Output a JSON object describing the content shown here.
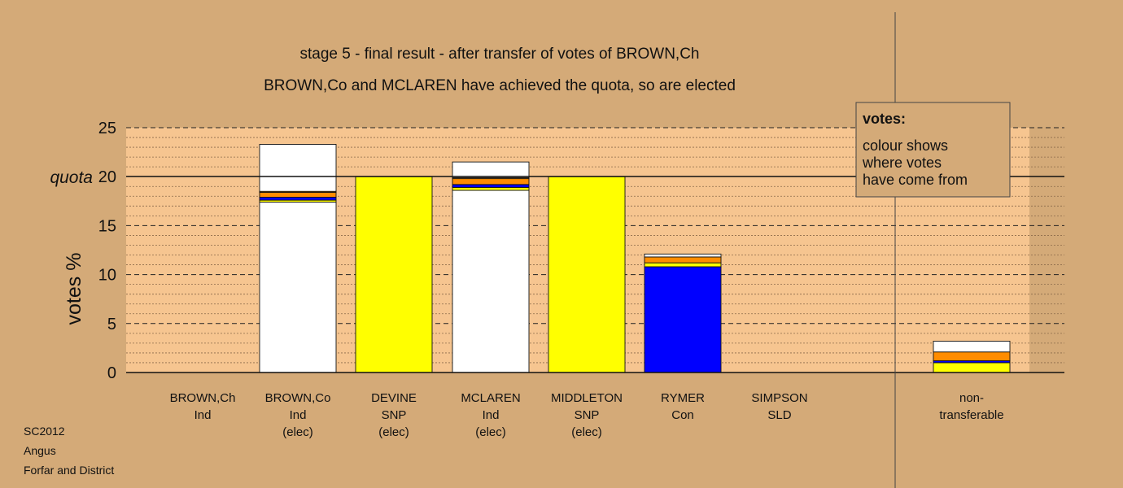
{
  "chart_data": {
    "type": "bar",
    "stacked": true,
    "title": "stage 5 - final result - after transfer of votes of BROWN,Ch",
    "subtitle": "BROWN,Co and MCLAREN have achieved the quota, so are elected",
    "ylabel": "votes %",
    "ylim": [
      0,
      25
    ],
    "yticks": [
      0,
      5,
      10,
      15,
      20,
      25
    ],
    "quota": {
      "label": "quota",
      "value": 20
    },
    "colors": {
      "background": "#d4aa78",
      "plot_background": "#f6c590",
      "Ind": "#ffffff",
      "SNP": "#ffff00",
      "Con": "#0000ff",
      "SLD": "#ff8c00",
      "Lab": "#f5a623"
    },
    "categories": [
      {
        "name": "BROWN,Ch",
        "party": "Ind",
        "status": ""
      },
      {
        "name": "BROWN,Co",
        "party": "Ind",
        "status": "(elec)"
      },
      {
        "name": "DEVINE",
        "party": "SNP",
        "status": "(elec)"
      },
      {
        "name": "MCLAREN",
        "party": "Ind",
        "status": "(elec)"
      },
      {
        "name": "MIDDLETON",
        "party": "SNP",
        "status": "(elec)"
      },
      {
        "name": "RYMER",
        "party": "Con",
        "status": ""
      },
      {
        "name": "SIMPSON",
        "party": "SLD",
        "status": ""
      }
    ],
    "stacks": [
      [],
      [
        {
          "value": 17.4,
          "color": "#ffffff"
        },
        {
          "value": 0.2,
          "color": "#ffff00"
        },
        {
          "value": 0.3,
          "color": "#0000ff"
        },
        {
          "value": 0.5,
          "color": "#ff8c00"
        },
        {
          "value": 0.1,
          "color": "#f5a623"
        },
        {
          "value": 4.8,
          "color": "#ffffff"
        }
      ],
      [
        {
          "value": 20.0,
          "color": "#ffff00"
        }
      ],
      [
        {
          "value": 18.6,
          "color": "#ffffff"
        },
        {
          "value": 0.3,
          "color": "#ffff00"
        },
        {
          "value": 0.3,
          "color": "#0000ff"
        },
        {
          "value": 0.6,
          "color": "#ff8c00"
        },
        {
          "value": 0.1,
          "color": "#f5a623"
        },
        {
          "value": 1.6,
          "color": "#ffffff"
        }
      ],
      [
        {
          "value": 20.0,
          "color": "#ffff00"
        }
      ],
      [
        {
          "value": 10.8,
          "color": "#0000ff"
        },
        {
          "value": 0.4,
          "color": "#ffff00"
        },
        {
          "value": 0.6,
          "color": "#ff8c00"
        },
        {
          "value": 0.3,
          "color": "#ffffff"
        }
      ],
      []
    ],
    "non_transferable": {
      "label": "non-\ntransferable",
      "label_lines": [
        "non-",
        "transferable"
      ],
      "stack": [
        {
          "value": 1.0,
          "color": "#ffff00"
        },
        {
          "value": 0.2,
          "color": "#0000ff"
        },
        {
          "value": 0.9,
          "color": "#ff8c00"
        },
        {
          "value": 1.1,
          "color": "#ffffff"
        }
      ]
    },
    "legend": {
      "title": "votes:",
      "lines": [
        "colour shows",
        "where votes",
        "have come from"
      ],
      "placement": "top-right"
    },
    "grid": true
  },
  "footer": {
    "election": "SC2012",
    "council": "Angus",
    "ward": "Forfar and District"
  }
}
